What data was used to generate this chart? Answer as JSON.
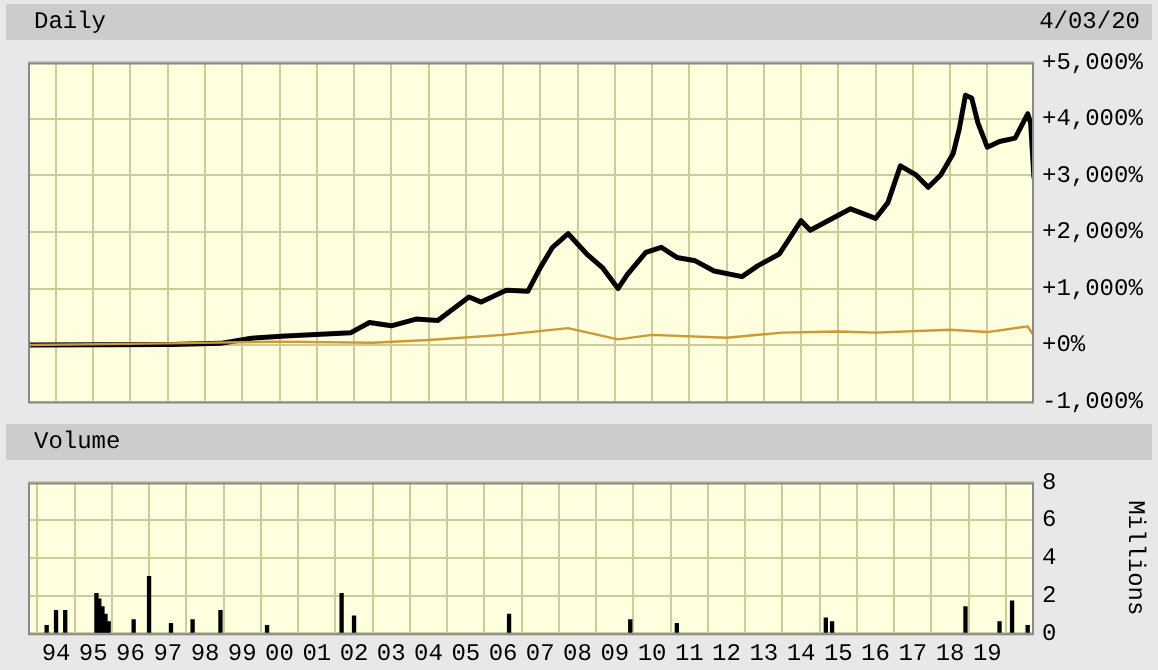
{
  "chart_data": [
    {
      "type": "line",
      "title": "Daily",
      "subtitle": "4/03/20",
      "xlim": [
        "1993-04",
        "2020-04-03"
      ],
      "xticks": [
        {
          "value": "1994-01",
          "label": null
        },
        {
          "value": "1995-01",
          "label": null
        },
        {
          "value": "1996-01",
          "label": null
        },
        {
          "value": "1997-01",
          "label": null
        },
        {
          "value": "1998-01",
          "label": null
        },
        {
          "value": "1999-01",
          "label": null
        },
        {
          "value": "2000-01",
          "label": null
        },
        {
          "value": "2001-01",
          "label": null
        },
        {
          "value": "2002-01",
          "label": null
        },
        {
          "value": "2003-01",
          "label": null
        },
        {
          "value": "2004-01",
          "label": null
        },
        {
          "value": "2005-01",
          "label": null
        },
        {
          "value": "2006-01",
          "label": null
        },
        {
          "value": "2007-01",
          "label": null
        },
        {
          "value": "2008-01",
          "label": null
        },
        {
          "value": "2009-01",
          "label": null
        },
        {
          "value": "2010-01",
          "label": null
        },
        {
          "value": "2011-01",
          "label": null
        },
        {
          "value": "2012-01",
          "label": null
        },
        {
          "value": "2013-01",
          "label": null
        },
        {
          "value": "2014-01",
          "label": null
        },
        {
          "value": "2015-01",
          "label": null
        },
        {
          "value": "2016-01",
          "label": null
        },
        {
          "value": "2017-01",
          "label": null
        },
        {
          "value": "2018-01",
          "label": null
        },
        {
          "value": "2019-01",
          "label": null
        }
      ],
      "ylim": [
        -1000,
        5000
      ],
      "yticks": [
        {
          "value": -1000,
          "label": "-1,000%"
        },
        {
          "value": 0,
          "label": "+0%"
        },
        {
          "value": 1000,
          "label": "+1,000%"
        },
        {
          "value": 2000,
          "label": "+2,000%"
        },
        {
          "value": 3000,
          "label": "+3,000%"
        },
        {
          "value": 4000,
          "label": "+4,000%"
        },
        {
          "value": 5000,
          "label": "+5,000%"
        }
      ],
      "grid": true,
      "tick_labels": "y",
      "series": [
        {
          "color": "#000000",
          "x": [
            "1993-04",
            "1997-02",
            "1998-06",
            "1999-04",
            "2000-03",
            "2001-12",
            "2002-06",
            "2003-01",
            "2003-09",
            "2004-04",
            "2005-02",
            "2005-06",
            "2006-02",
            "2006-09",
            "2007-01",
            "2007-05",
            "2007-10",
            "2008-04",
            "2008-09",
            "2009-02",
            "2009-05",
            "2009-11",
            "2010-04",
            "2010-09",
            "2011-03",
            "2011-09",
            "2012-06",
            "2012-11",
            "2013-06",
            "2014-01",
            "2014-04",
            "2015-05",
            "2016-01",
            "2016-05",
            "2016-09",
            "2017-02",
            "2017-06",
            "2017-10",
            "2018-02",
            "2018-04",
            "2018-06",
            "2018-08",
            "2018-10",
            "2019-01",
            "2019-05",
            "2019-10",
            "2020-02",
            "2020-03",
            "2020-04-03"
          ],
          "values": [
            0,
            10,
            30,
            120,
            160,
            220,
            400,
            340,
            460,
            435,
            850,
            760,
            970,
            950,
            1370,
            1730,
            1970,
            1610,
            1370,
            1000,
            1240,
            1640,
            1730,
            1550,
            1490,
            1310,
            1210,
            1400,
            1610,
            2200,
            2030,
            2410,
            2240,
            2520,
            3170,
            3010,
            2790,
            3010,
            3390,
            3820,
            4420,
            4370,
            3930,
            3500,
            3600,
            3660,
            4090,
            3930,
            2950
          ]
        },
        {
          "color": "#cc9933",
          "x": [
            "1993-04",
            "1997-01",
            "2000-01",
            "2002-07",
            "2004-01",
            "2006-01",
            "2007-10",
            "2009-02",
            "2010-01",
            "2012-01",
            "2013-07",
            "2015-01",
            "2016-01",
            "2018-01",
            "2019-01",
            "2020-02",
            "2020-04-03"
          ],
          "values": [
            0,
            30,
            60,
            40,
            90,
            180,
            300,
            100,
            180,
            130,
            220,
            240,
            220,
            270,
            230,
            330,
            160
          ]
        }
      ]
    },
    {
      "type": "bar",
      "title": "Volume",
      "ylabel": "Millions",
      "xlim": [
        "1993-04",
        "2020-04-03"
      ],
      "xticks": [
        {
          "value": "1994-01",
          "label": "94"
        },
        {
          "value": "1995-01",
          "label": "95"
        },
        {
          "value": "1996-01",
          "label": "96"
        },
        {
          "value": "1997-01",
          "label": "97"
        },
        {
          "value": "1998-01",
          "label": "98"
        },
        {
          "value": "1999-01",
          "label": "99"
        },
        {
          "value": "2000-01",
          "label": "00"
        },
        {
          "value": "2001-01",
          "label": "01"
        },
        {
          "value": "2002-01",
          "label": "02"
        },
        {
          "value": "2003-01",
          "label": "03"
        },
        {
          "value": "2004-01",
          "label": "04"
        },
        {
          "value": "2005-01",
          "label": "05"
        },
        {
          "value": "2006-01",
          "label": "06"
        },
        {
          "value": "2007-01",
          "label": "07"
        },
        {
          "value": "2008-01",
          "label": "08"
        },
        {
          "value": "2009-01",
          "label": "09"
        },
        {
          "value": "2010-01",
          "label": "10"
        },
        {
          "value": "2011-01",
          "label": "11"
        },
        {
          "value": "2012-01",
          "label": "12"
        },
        {
          "value": "2013-01",
          "label": "13"
        },
        {
          "value": "2014-01",
          "label": "14"
        },
        {
          "value": "2015-01",
          "label": "15"
        },
        {
          "value": "2016-01",
          "label": "16"
        },
        {
          "value": "2017-01",
          "label": "17"
        },
        {
          "value": "2018-01",
          "label": "18"
        },
        {
          "value": "2019-01",
          "label": "19"
        }
      ],
      "ylim": [
        0,
        8
      ],
      "yticks": [
        0,
        2,
        4,
        6,
        8
      ],
      "grid": true,
      "series": [
        {
          "color": "#000000",
          "x": [
            "1993-10",
            "1994-01",
            "1994-04",
            "1995-02",
            "1995-03",
            "1995-04",
            "1995-05",
            "1995-06",
            "1996-02",
            "1996-07",
            "1997-02",
            "1997-09",
            "1998-06",
            "1999-09",
            "2001-09",
            "2002-01",
            "2006-03",
            "2009-06",
            "2010-09",
            "2014-09",
            "2014-11",
            "2018-06",
            "2019-05",
            "2019-09",
            "2020-02"
          ],
          "values": [
            0.4,
            1.2,
            1.2,
            2.1,
            1.8,
            1.4,
            1.0,
            0.6,
            0.7,
            3.0,
            0.5,
            0.7,
            1.2,
            0.4,
            2.1,
            0.9,
            1.0,
            0.7,
            0.5,
            0.8,
            0.6,
            1.4,
            0.6,
            1.7,
            0.4
          ]
        }
      ]
    }
  ]
}
